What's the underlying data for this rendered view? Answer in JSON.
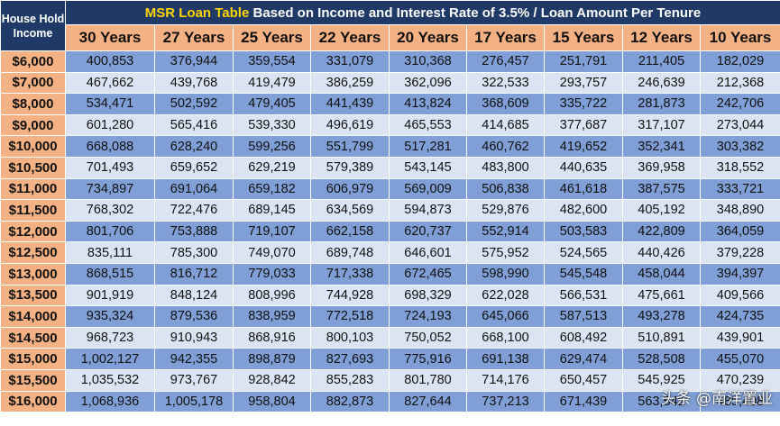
{
  "header": {
    "corner_label": "House Hold Income",
    "title_highlight": "MSR Loan Table",
    "title_rest": " Based on Income and Interest Rate of 3.5% / Loan Amount Per Tenure",
    "tenures": [
      "30 Years",
      "27 Years",
      "25 Years",
      "22 Years",
      "20 Years",
      "17 Years",
      "15 Years",
      "12 Years",
      "10 Years"
    ]
  },
  "rows": [
    {
      "income": "$6,000",
      "values": [
        "400,853",
        "376,944",
        "359,554",
        "331,079",
        "310,368",
        "276,457",
        "251,791",
        "211,405",
        "182,029"
      ]
    },
    {
      "income": "$7,000",
      "values": [
        "467,662",
        "439,768",
        "419,479",
        "386,259",
        "362,096",
        "322,533",
        "293,757",
        "246,639",
        "212,368"
      ]
    },
    {
      "income": "$8,000",
      "values": [
        "534,471",
        "502,592",
        "479,405",
        "441,439",
        "413,824",
        "368,609",
        "335,722",
        "281,873",
        "242,706"
      ]
    },
    {
      "income": "$9,000",
      "values": [
        "601,280",
        "565,416",
        "539,330",
        "496,619",
        "465,553",
        "414,685",
        "377,687",
        "317,107",
        "273,044"
      ]
    },
    {
      "income": "$10,000",
      "values": [
        "668,088",
        "628,240",
        "599,256",
        "551,799",
        "517,281",
        "460,762",
        "419,652",
        "352,341",
        "303,382"
      ]
    },
    {
      "income": "$10,500",
      "values": [
        "701,493",
        "659,652",
        "629,219",
        "579,389",
        "543,145",
        "483,800",
        "440,635",
        "369,958",
        "318,552"
      ]
    },
    {
      "income": "$11,000",
      "values": [
        "734,897",
        "691,064",
        "659,182",
        "606,979",
        "569,009",
        "506,838",
        "461,618",
        "387,575",
        "333,721"
      ]
    },
    {
      "income": "$11,500",
      "values": [
        "768,302",
        "722,476",
        "689,145",
        "634,569",
        "594,873",
        "529,876",
        "482,600",
        "405,192",
        "348,890"
      ]
    },
    {
      "income": "$12,000",
      "values": [
        "801,706",
        "753,888",
        "719,107",
        "662,158",
        "620,737",
        "552,914",
        "503,583",
        "422,809",
        "364,059"
      ]
    },
    {
      "income": "$12,500",
      "values": [
        "835,111",
        "785,300",
        "749,070",
        "689,748",
        "646,601",
        "575,952",
        "524,565",
        "440,426",
        "379,228"
      ]
    },
    {
      "income": "$13,000",
      "values": [
        "868,515",
        "816,712",
        "779,033",
        "717,338",
        "672,465",
        "598,990",
        "545,548",
        "458,044",
        "394,397"
      ]
    },
    {
      "income": "$13,500",
      "values": [
        "901,919",
        "848,124",
        "808,996",
        "744,928",
        "698,329",
        "622,028",
        "566,531",
        "475,661",
        "409,566"
      ]
    },
    {
      "income": "$14,000",
      "values": [
        "935,324",
        "879,536",
        "838,959",
        "772,518",
        "724,193",
        "645,066",
        "587,513",
        "493,278",
        "424,735"
      ]
    },
    {
      "income": "$14,500",
      "values": [
        "968,723",
        "910,943",
        "868,916",
        "800,103",
        "750,052",
        "668,100",
        "608,492",
        "510,891",
        "439,901"
      ]
    },
    {
      "income": "$15,000",
      "values": [
        "1,002,127",
        "942,355",
        "898,879",
        "827,693",
        "775,916",
        "691,138",
        "629,474",
        "528,508",
        "455,070"
      ]
    },
    {
      "income": "$15,500",
      "values": [
        "1,035,532",
        "973,767",
        "928,842",
        "855,283",
        "801,780",
        "714,176",
        "650,457",
        "545,925",
        "470,239"
      ]
    },
    {
      "income": "$16,000",
      "values": [
        "1,068,936",
        "1,005,178",
        "958,804",
        "882,873",
        "827,644",
        "737,213",
        "671,439",
        "563,542",
        "485,408"
      ]
    }
  ],
  "watermark": "头条 @南洋置业"
}
